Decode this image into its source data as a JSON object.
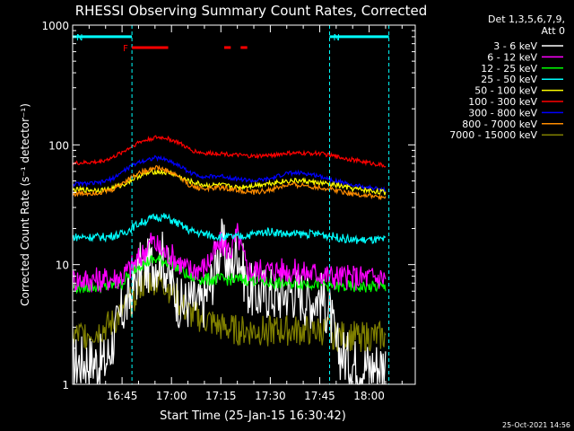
{
  "chart_data": {
    "type": "line",
    "title": "RHESSI Observing Summary Count Rates, Corrected",
    "xlabel": "Start Time (25-Jan-15 16:30:42)",
    "ylabel": "Corrected Count Rate (s⁻¹ detector⁻¹)",
    "yscale": "log",
    "ylim": [
      1,
      1000
    ],
    "xlim_minutes": [
      0,
      104
    ],
    "x_ticks": [
      {
        "minute": 15,
        "label": "16:45"
      },
      {
        "minute": 30,
        "label": "17:00"
      },
      {
        "minute": 45,
        "label": "17:15"
      },
      {
        "minute": 60,
        "label": "17:30"
      },
      {
        "minute": 75,
        "label": "17:45"
      },
      {
        "minute": 90,
        "label": "18:00"
      }
    ],
    "y_ticks": [
      {
        "value": 1,
        "label": "1"
      },
      {
        "value": 10,
        "label": "10"
      },
      {
        "value": 100,
        "label": "100"
      },
      {
        "value": 1000,
        "label": "1000"
      }
    ],
    "legend_header": [
      "Det 1,3,5,6,7,9,",
      "Att 0"
    ],
    "legend_position": "right",
    "footer_date": "25-Oct-2021 14:56",
    "night_markers_minutes": [
      0,
      18,
      78,
      96
    ],
    "flags": [
      {
        "label": "N",
        "color": "#00ffff",
        "start": 0,
        "end": 18,
        "level": 800
      },
      {
        "label": "N",
        "color": "#00ffff",
        "start": 78,
        "end": 96,
        "level": 800
      },
      {
        "label": "F",
        "color": "#ff0000",
        "start": 18,
        "end": 29,
        "level": 650
      },
      {
        "label": "",
        "color": "#ff0000",
        "start": 46,
        "end": 48,
        "level": 650
      },
      {
        "label": "",
        "color": "#ff0000",
        "start": 51,
        "end": 53,
        "level": 650
      }
    ],
    "series": [
      {
        "name": "3 - 6 keV",
        "color": "#ffffff",
        "x": [
          0,
          5,
          10,
          15,
          17,
          20,
          24,
          27,
          30,
          33,
          36,
          39,
          42,
          45,
          48,
          50,
          53,
          56,
          59,
          62,
          65,
          68,
          72,
          75,
          78,
          80,
          85,
          90,
          95
        ],
        "y": [
          1.5,
          1.6,
          1.5,
          4,
          5,
          9,
          10,
          12,
          7,
          4.5,
          5,
          4.5,
          7,
          15,
          9,
          14,
          6.5,
          5.5,
          6,
          5.5,
          6,
          6,
          5,
          5.5,
          4,
          2,
          1.5,
          1.4,
          1.5
        ]
      },
      {
        "name": "6 - 12 keV",
        "color": "#ff00ff",
        "x": [
          0,
          10,
          15,
          20,
          24,
          27,
          30,
          35,
          40,
          45,
          48,
          50,
          53,
          56,
          60,
          65,
          70,
          75,
          78,
          85,
          95
        ],
        "y": [
          7.5,
          7.5,
          8,
          11,
          16,
          13,
          12,
          9,
          9.5,
          15,
          13,
          18,
          9,
          9,
          9,
          9,
          8.5,
          8.5,
          8,
          7.8,
          7.8
        ]
      },
      {
        "name": "12 - 25 keV",
        "color": "#00ff00",
        "x": [
          0,
          10,
          15,
          20,
          25,
          30,
          35,
          40,
          45,
          50,
          55,
          60,
          65,
          70,
          75,
          80,
          85,
          95
        ],
        "y": [
          6.5,
          6.5,
          7,
          10,
          11,
          10.5,
          8,
          7.5,
          7.5,
          7.5,
          7.5,
          7,
          7,
          7,
          7,
          6.5,
          6.5,
          6.5
        ]
      },
      {
        "name": "25 - 50 keV",
        "color": "#00ffff",
        "x": [
          0,
          10,
          15,
          20,
          25,
          28,
          32,
          36,
          40,
          45,
          50,
          55,
          60,
          65,
          70,
          75,
          80,
          85,
          95
        ],
        "y": [
          17,
          17,
          18,
          22,
          25,
          25,
          22,
          19,
          18,
          17,
          17,
          18,
          19,
          18,
          18,
          18,
          17,
          16,
          16
        ]
      },
      {
        "name": "50 - 100 keV",
        "color": "#ffff00",
        "x": [
          0,
          10,
          15,
          20,
          25,
          30,
          35,
          40,
          45,
          50,
          55,
          60,
          65,
          70,
          75,
          80,
          85,
          95
        ],
        "y": [
          42,
          42,
          46,
          55,
          60,
          58,
          50,
          46,
          46,
          44,
          46,
          48,
          50,
          50,
          48,
          46,
          43,
          40
        ]
      },
      {
        "name": "100 - 300 keV",
        "color": "#ff0000",
        "x": [
          0,
          8,
          12,
          16,
          20,
          25,
          28,
          32,
          36,
          40,
          45,
          50,
          55,
          60,
          65,
          70,
          75,
          80,
          85,
          95
        ],
        "y": [
          70,
          72,
          78,
          90,
          105,
          115,
          115,
          105,
          90,
          85,
          85,
          82,
          80,
          82,
          85,
          85,
          85,
          80,
          75,
          67
        ]
      },
      {
        "name": "300 - 800 keV",
        "color": "#0000ff",
        "x": [
          0,
          8,
          12,
          16,
          20,
          25,
          28,
          32,
          36,
          40,
          45,
          50,
          55,
          60,
          65,
          70,
          75,
          80,
          85,
          95
        ],
        "y": [
          47,
          48,
          52,
          62,
          72,
          78,
          76,
          68,
          58,
          54,
          55,
          52,
          50,
          52,
          58,
          58,
          55,
          50,
          46,
          42
        ]
      },
      {
        "name": "800 - 7000 keV",
        "color": "#ff8c00",
        "x": [
          0,
          8,
          12,
          16,
          20,
          25,
          28,
          32,
          36,
          40,
          45,
          50,
          55,
          60,
          65,
          70,
          75,
          80,
          85,
          95
        ],
        "y": [
          39,
          40,
          42,
          50,
          58,
          65,
          62,
          55,
          45,
          43,
          44,
          42,
          40,
          42,
          46,
          46,
          44,
          42,
          39,
          36
        ]
      },
      {
        "name": "7000 - 15000 keV",
        "color": "#808000",
        "x": [
          0,
          8,
          12,
          15,
          18,
          20,
          24,
          28,
          30,
          33,
          36,
          40,
          45,
          50,
          55,
          60,
          65,
          70,
          75,
          78,
          80,
          85,
          95
        ],
        "y": [
          2.5,
          2.8,
          3.2,
          4,
          5,
          6.5,
          7.5,
          7,
          6,
          4.5,
          3.8,
          3.5,
          3,
          2.8,
          2.8,
          2.8,
          2.8,
          2.8,
          2.8,
          2.8,
          2.5,
          2.5,
          2.5
        ]
      }
    ]
  }
}
